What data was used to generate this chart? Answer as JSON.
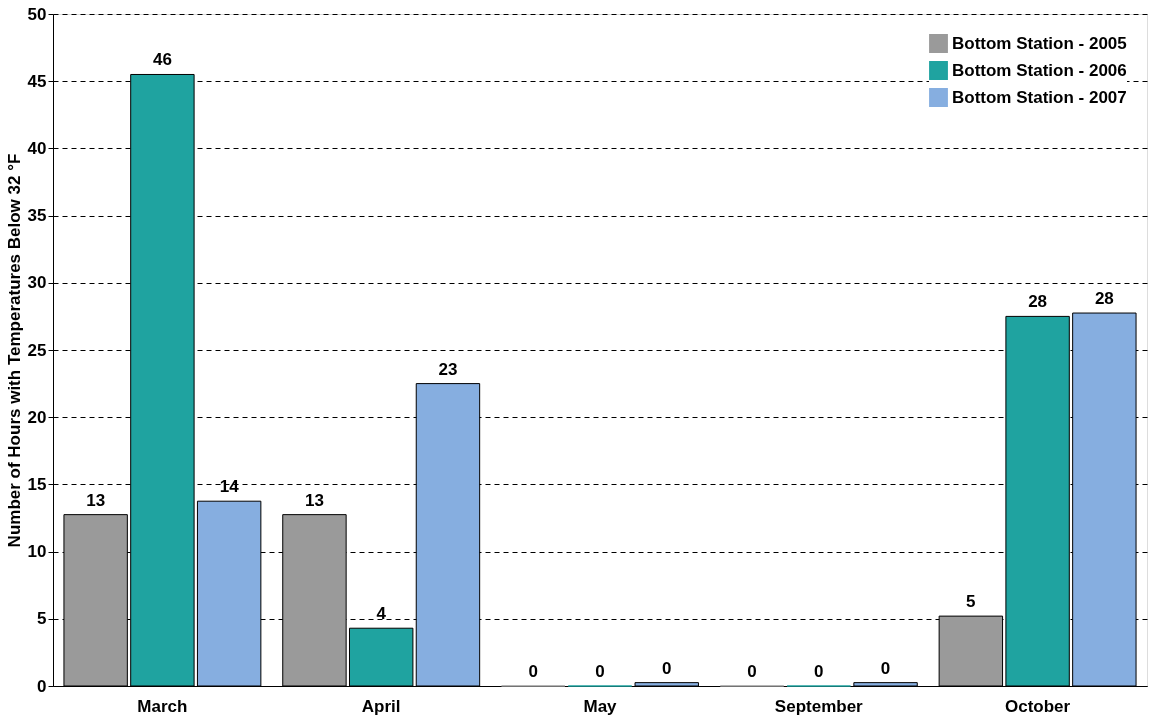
{
  "chart_data": {
    "type": "bar",
    "ylabel": "Number of Hours with Temperatures Below 32 °F",
    "categories": [
      "March",
      "April",
      "May",
      "September",
      "October"
    ],
    "series": [
      {
        "name": "Bottom Station - 2005",
        "color": "#9a9a9a",
        "values": [
          12.75,
          12.75,
          0,
          0,
          5.2
        ],
        "value_labels": [
          "13",
          "13",
          "0",
          "0",
          "5"
        ]
      },
      {
        "name": "Bottom Station - 2006",
        "color": "#1fa3a0",
        "values": [
          45.5,
          4.3,
          0,
          0,
          27.5
        ],
        "value_labels": [
          "46",
          "4",
          "0",
          "0",
          "28"
        ]
      },
      {
        "name": "Bottom Station - 2007",
        "color": "#86aee0",
        "values": [
          13.75,
          22.5,
          0.25,
          0.25,
          27.75
        ],
        "value_labels": [
          "14",
          "23",
          "0",
          "0",
          "28"
        ]
      }
    ],
    "ylim": [
      0,
      50
    ],
    "yticks": [
      0,
      5,
      10,
      15,
      20,
      25,
      30,
      35,
      40,
      45,
      50
    ],
    "grid": "y",
    "legend": "top right"
  }
}
